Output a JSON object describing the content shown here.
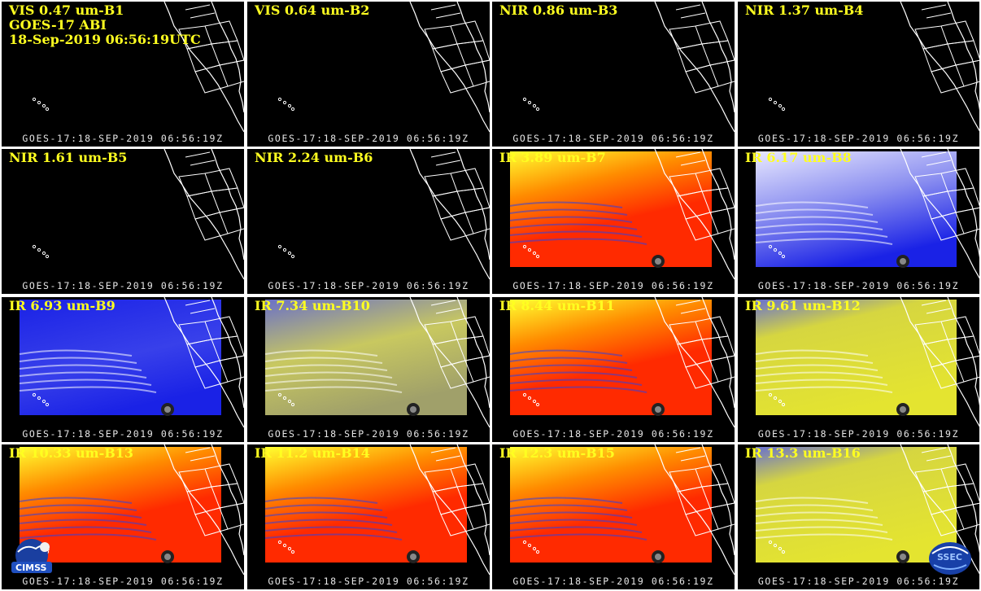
{
  "header": {
    "line2": "GOES-17 ABI",
    "line3": "18-Sep-2019 06:56:19UTC"
  },
  "timestamp": "GOES-17:18-SEP-2019 06:56:19Z",
  "panels": [
    {
      "title": "VIS 0.47 um-B1",
      "type": "vis"
    },
    {
      "title": "VIS 0.64 um-B2",
      "type": "vis"
    },
    {
      "title": "NIR 0.86 um-B3",
      "type": "vis"
    },
    {
      "title": "NIR 1.37 um-B4",
      "type": "vis"
    },
    {
      "title": "NIR 1.61 um-B5",
      "type": "vis"
    },
    {
      "title": "NIR 2.24 um-B6",
      "type": "vis"
    },
    {
      "title": "IR 3.89 um-B7",
      "type": "ir-hot"
    },
    {
      "title": "IR 6.17 um-B8",
      "type": "wv-white"
    },
    {
      "title": "IR 6.93 um-B9",
      "type": "wv-blue"
    },
    {
      "title": "IR 7.34 um-B10",
      "type": "wv-mix"
    },
    {
      "title": "IR 8.44 um-B11",
      "type": "ir-hot"
    },
    {
      "title": "IR 9.61 um-B12",
      "type": "ir-yellow"
    },
    {
      "title": "IR 10.33 um-B13",
      "type": "ir-hot"
    },
    {
      "title": "IR 11.2 um-B14",
      "type": "ir-hot"
    },
    {
      "title": "IR 12.3 um-B15",
      "type": "ir-hot"
    },
    {
      "title": "IR 13.3 um-B16",
      "type": "ir-yellow"
    }
  ],
  "logos": {
    "left": "CIMSS",
    "right": "SSEC"
  },
  "colors": {
    "title": "#ffff20",
    "coast": "#ffffff",
    "hot_red": "#ff2a00",
    "hot_orange": "#ff8c00",
    "hot_yellow": "#ffff30",
    "wv_blue": "#1a22e6",
    "wv_white": "#e8e8ff",
    "mix_yellow": "#c8c860"
  }
}
